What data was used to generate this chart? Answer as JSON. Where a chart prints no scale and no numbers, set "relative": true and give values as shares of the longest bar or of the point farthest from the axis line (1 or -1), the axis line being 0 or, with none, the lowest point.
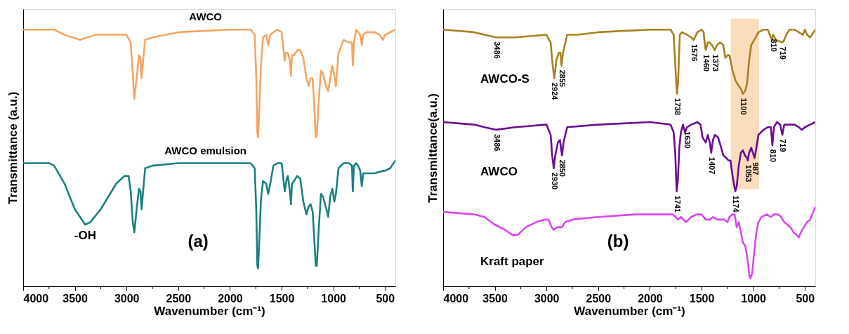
{
  "chart_data": [
    {
      "type": "line",
      "relative": true,
      "xlabel": "Wavenumber (cm⁻¹)",
      "ylabel": "Transmittance (a.u.)",
      "xlim": [
        4000,
        400
      ],
      "xticks": [
        4000,
        {
          "value": 3750,
          "label": null
        },
        3500,
        {
          "value": 3250,
          "label": null
        },
        3000,
        {
          "value": 2750,
          "label": null
        },
        2500,
        {
          "value": 2250,
          "label": null
        },
        2000,
        {
          "value": 1750,
          "label": null
        },
        1500,
        {
          "value": 1250,
          "label": null
        },
        1000,
        {
          "value": 750,
          "label": null
        },
        500
      ],
      "grid": false,
      "series": [
        {
          "name": "AWCO",
          "color": "#f5a462",
          "x": [
            4000,
            3700,
            3600,
            3450,
            3300,
            3100,
            3000,
            2960,
            2940,
            2925,
            2900,
            2880,
            2865,
            2855,
            2840,
            2820,
            2750,
            2500,
            2000,
            1800,
            1760,
            1745,
            1735,
            1728,
            1720,
            1700,
            1680,
            1650,
            1630,
            1610,
            1580,
            1540,
            1500,
            1470,
            1460,
            1440,
            1420,
            1410,
            1400,
            1380,
            1350,
            1320,
            1290,
            1260,
            1240,
            1220,
            1200,
            1185,
            1170,
            1160,
            1140,
            1120,
            1100,
            1080,
            1060,
            1050,
            1030,
            1010,
            990,
            975,
            950,
            900,
            850,
            820,
            812,
            800,
            780,
            760,
            740,
            725,
            710,
            680,
            600,
            550,
            520,
            500,
            450,
            400
          ],
          "values": [
            1.0,
            1.0,
            0.98,
            0.96,
            0.98,
            0.98,
            0.98,
            0.95,
            0.83,
            0.73,
            0.82,
            0.9,
            0.89,
            0.81,
            0.88,
            0.96,
            0.97,
            0.99,
            1.0,
            1.0,
            0.98,
            0.81,
            0.6,
            0.58,
            0.65,
            0.86,
            0.97,
            0.98,
            0.94,
            0.98,
            0.99,
            1.0,
            0.99,
            0.88,
            0.91,
            0.91,
            0.88,
            0.82,
            0.9,
            0.9,
            0.92,
            0.92,
            0.89,
            0.81,
            0.78,
            0.81,
            0.81,
            0.71,
            0.58,
            0.59,
            0.73,
            0.84,
            0.83,
            0.79,
            0.77,
            0.76,
            0.81,
            0.86,
            0.82,
            0.78,
            0.91,
            0.96,
            0.95,
            0.95,
            0.86,
            0.95,
            1.0,
            0.99,
            0.98,
            0.94,
            0.98,
            0.99,
            0.99,
            0.98,
            0.96,
            0.98,
            0.99,
            1.0
          ]
        },
        {
          "name": "AWCO emulsion",
          "color": "#1a8080",
          "x": [
            4000,
            3750,
            3700,
            3600,
            3500,
            3400,
            3350,
            3250,
            3100,
            3020,
            2980,
            2960,
            2940,
            2925,
            2900,
            2880,
            2865,
            2855,
            2840,
            2820,
            2750,
            2500,
            2000,
            1800,
            1760,
            1745,
            1735,
            1728,
            1720,
            1700,
            1680,
            1650,
            1630,
            1610,
            1580,
            1540,
            1500,
            1470,
            1450,
            1440,
            1420,
            1410,
            1400,
            1380,
            1350,
            1320,
            1290,
            1260,
            1240,
            1220,
            1200,
            1185,
            1170,
            1160,
            1140,
            1120,
            1100,
            1080,
            1060,
            1050,
            1030,
            1010,
            990,
            975,
            950,
            900,
            850,
            820,
            812,
            800,
            780,
            760,
            740,
            725,
            710,
            680,
            600,
            520,
            500,
            450,
            400
          ],
          "values": [
            0.48,
            0.48,
            0.47,
            0.4,
            0.3,
            0.24,
            0.25,
            0.3,
            0.4,
            0.43,
            0.43,
            0.37,
            0.25,
            0.21,
            0.31,
            0.38,
            0.37,
            0.3,
            0.37,
            0.46,
            0.47,
            0.48,
            0.48,
            0.48,
            0.46,
            0.29,
            0.08,
            0.07,
            0.14,
            0.34,
            0.41,
            0.4,
            0.36,
            0.4,
            0.47,
            0.48,
            0.48,
            0.37,
            0.42,
            0.43,
            0.37,
            0.32,
            0.4,
            0.41,
            0.43,
            0.42,
            0.33,
            0.28,
            0.31,
            0.32,
            0.29,
            0.19,
            0.08,
            0.08,
            0.23,
            0.36,
            0.35,
            0.32,
            0.29,
            0.27,
            0.35,
            0.38,
            0.33,
            0.36,
            0.46,
            0.48,
            0.48,
            0.47,
            0.37,
            0.47,
            0.48,
            0.47,
            0.45,
            0.39,
            0.44,
            0.44,
            0.44,
            0.45,
            0.45,
            0.46,
            0.49
          ]
        }
      ],
      "annotations": [
        {
          "text": "-OH",
          "x": 3400,
          "y": 0.24
        },
        "(a)"
      ]
    },
    {
      "type": "line",
      "relative": true,
      "xlabel": "Wavenumber (cm⁻¹)",
      "ylabel": "Transmittance(a.u.)",
      "xlim": [
        4000,
        400
      ],
      "xticks": [
        4000,
        {
          "value": 3750,
          "label": null
        },
        3500,
        {
          "value": 3250,
          "label": null
        },
        3000,
        {
          "value": 2750,
          "label": null
        },
        2500,
        {
          "value": 2250,
          "label": null
        },
        2000,
        {
          "value": 1750,
          "label": null
        },
        1500,
        {
          "value": 1250,
          "label": null
        },
        1000,
        {
          "value": 750,
          "label": null
        },
        500
      ],
      "grid": false,
      "bands": [
        {
          "axis": "x",
          "from": 1218,
          "to": 944,
          "color": "#f9d9b5"
        }
      ],
      "series": [
        {
          "name": "AWCO-S",
          "color": "#a7801f",
          "x": [
            4000,
            3700,
            3600,
            3486,
            3300,
            3000,
            2960,
            2940,
            2924,
            2905,
            2880,
            2865,
            2855,
            2840,
            2800,
            2700,
            2500,
            2000,
            1800,
            1770,
            1750,
            1738,
            1728,
            1710,
            1690,
            1640,
            1600,
            1576,
            1540,
            1500,
            1480,
            1470,
            1460,
            1440,
            1420,
            1400,
            1373,
            1350,
            1320,
            1290,
            1270,
            1250,
            1230,
            1200,
            1170,
            1140,
            1120,
            1100,
            1080,
            1060,
            1040,
            1020,
            990,
            950,
            900,
            860,
            840,
            820,
            810,
            780,
            719,
            700,
            680,
            650,
            600,
            560,
            520,
            500,
            480,
            450,
            400
          ],
          "values": [
            1.0,
            0.99,
            0.98,
            0.97,
            0.97,
            0.98,
            0.95,
            0.86,
            0.81,
            0.88,
            0.91,
            0.91,
            0.86,
            0.91,
            0.98,
            0.98,
            0.99,
            1.0,
            1.0,
            0.98,
            0.83,
            0.75,
            0.79,
            0.98,
            0.99,
            0.98,
            0.97,
            0.96,
            0.99,
            1.0,
            0.99,
            0.95,
            0.92,
            0.95,
            0.95,
            0.94,
            0.92,
            0.94,
            0.95,
            0.94,
            0.89,
            0.9,
            0.9,
            0.84,
            0.8,
            0.78,
            0.77,
            0.75,
            0.76,
            0.79,
            0.88,
            0.94,
            0.96,
            0.99,
            1.0,
            1.0,
            0.98,
            0.96,
            0.98,
            0.96,
            0.95,
            0.96,
            0.98,
            1.0,
            1.0,
            0.99,
            0.98,
            1.0,
            0.98,
            0.97,
            1.0
          ]
        },
        {
          "name": "AWCO",
          "color": "#6a0d91",
          "x": [
            4000,
            3700,
            3600,
            3486,
            3300,
            3000,
            2960,
            2945,
            2930,
            2915,
            2890,
            2870,
            2860,
            2850,
            2835,
            2800,
            2500,
            2000,
            1800,
            1770,
            1755,
            1741,
            1730,
            1715,
            1700,
            1680,
            1660,
            1640,
            1600,
            1540,
            1510,
            1490,
            1460,
            1440,
            1420,
            1407,
            1390,
            1370,
            1340,
            1310,
            1290,
            1260,
            1240,
            1220,
            1200,
            1174,
            1160,
            1140,
            1120,
            1100,
            1080,
            1060,
            1053,
            1040,
            1020,
            987,
            970,
            950,
            900,
            860,
            830,
            815,
            800,
            770,
            740,
            719,
            700,
            650,
            600,
            560,
            530,
            500,
            450,
            400
          ],
          "values": [
            0.64,
            0.63,
            0.62,
            0.61,
            0.62,
            0.63,
            0.59,
            0.51,
            0.46,
            0.51,
            0.56,
            0.57,
            0.54,
            0.51,
            0.56,
            0.62,
            0.63,
            0.64,
            0.63,
            0.6,
            0.52,
            0.37,
            0.41,
            0.54,
            0.6,
            0.63,
            0.6,
            0.62,
            0.63,
            0.64,
            0.63,
            0.58,
            0.56,
            0.59,
            0.56,
            0.52,
            0.57,
            0.59,
            0.58,
            0.54,
            0.51,
            0.5,
            0.49,
            0.49,
            0.43,
            0.37,
            0.39,
            0.47,
            0.52,
            0.53,
            0.51,
            0.5,
            0.49,
            0.52,
            0.54,
            0.5,
            0.54,
            0.59,
            0.61,
            0.62,
            0.62,
            0.55,
            0.62,
            0.64,
            0.63,
            0.59,
            0.63,
            0.63,
            0.63,
            0.62,
            0.61,
            0.62,
            0.63,
            0.64
          ]
        },
        {
          "name": "Kraft paper",
          "color": "#d847f0",
          "x": [
            4000,
            3700,
            3600,
            3500,
            3400,
            3330,
            3280,
            3200,
            3100,
            3020,
            2980,
            2950,
            2930,
            2900,
            2870,
            2850,
            2820,
            2750,
            2500,
            2150,
            2000,
            1780,
            1750,
            1730,
            1700,
            1650,
            1600,
            1550,
            1500,
            1460,
            1420,
            1390,
            1350,
            1310,
            1280,
            1250,
            1230,
            1200,
            1180,
            1160,
            1140,
            1120,
            1100,
            1080,
            1060,
            1040,
            1030,
            1010,
            990,
            970,
            950,
            920,
            870,
            830,
            800,
            760,
            730,
            700,
            670,
            640,
            610,
            580,
            560,
            540,
            510,
            480,
            450,
            400
          ],
          "values": [
            0.29,
            0.28,
            0.27,
            0.24,
            0.22,
            0.2,
            0.2,
            0.23,
            0.25,
            0.26,
            0.26,
            0.23,
            0.22,
            0.23,
            0.23,
            0.23,
            0.25,
            0.26,
            0.27,
            0.28,
            0.28,
            0.28,
            0.27,
            0.26,
            0.27,
            0.25,
            0.27,
            0.28,
            0.28,
            0.26,
            0.26,
            0.27,
            0.26,
            0.26,
            0.26,
            0.25,
            0.27,
            0.28,
            0.28,
            0.23,
            0.25,
            0.21,
            0.17,
            0.16,
            0.12,
            0.05,
            0.03,
            0.05,
            0.14,
            0.21,
            0.25,
            0.27,
            0.28,
            0.27,
            0.28,
            0.28,
            0.27,
            0.25,
            0.24,
            0.23,
            0.21,
            0.2,
            0.19,
            0.21,
            0.23,
            0.25,
            0.26,
            0.31
          ]
        }
      ],
      "annotations": [
        {
          "text": "3486",
          "x": 3486,
          "y": 0.97
        },
        {
          "text": "2924",
          "x": 2924,
          "y": 0.81
        },
        {
          "text": "2855",
          "x": 2855,
          "y": 0.86
        },
        {
          "text": "1738",
          "x": 1738,
          "y": 0.75
        },
        {
          "text": "1576",
          "x": 1576,
          "y": 0.96
        },
        {
          "text": "1460",
          "x": 1460,
          "y": 0.92
        },
        {
          "text": "1373",
          "x": 1373,
          "y": 0.92
        },
        {
          "text": "1100",
          "x": 1100,
          "y": 0.75
        },
        {
          "text": "810",
          "x": 810,
          "y": 0.98
        },
        {
          "text": "719",
          "x": 719,
          "y": 0.95
        },
        {
          "text": "3486",
          "x": 3486,
          "y": 0.61
        },
        {
          "text": "2930",
          "x": 2930,
          "y": 0.46
        },
        {
          "text": "2850",
          "x": 2850,
          "y": 0.51
        },
        {
          "text": "1741",
          "x": 1741,
          "y": 0.37
        },
        {
          "text": "1630",
          "x": 1640,
          "y": 0.62
        },
        {
          "text": "1407",
          "x": 1407,
          "y": 0.52
        },
        {
          "text": "1174",
          "x": 1174,
          "y": 0.37
        },
        {
          "text": "1053",
          "x": 1053,
          "y": 0.49
        },
        {
          "text": "987",
          "x": 987,
          "y": 0.5
        },
        {
          "text": "810",
          "x": 815,
          "y": 0.55
        },
        {
          "text": "719",
          "x": 719,
          "y": 0.59
        },
        "(b)"
      ]
    }
  ]
}
